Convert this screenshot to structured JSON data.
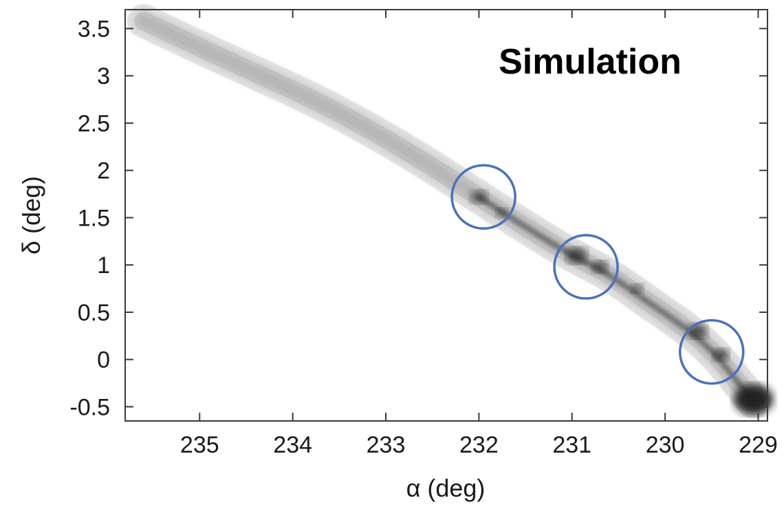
{
  "chart_data": {
    "type": "scatter",
    "title": "",
    "annotation": "Simulation",
    "xlabel": "α (deg)",
    "ylabel": "δ (deg)",
    "xlim": [
      235.8,
      228.9
    ],
    "ylim": [
      -0.65,
      3.7
    ],
    "x_ticks": [
      235,
      234,
      233,
      232,
      231,
      230,
      229
    ],
    "y_ticks": [
      3.5,
      3,
      2.5,
      2,
      1.5,
      1,
      0.5,
      0,
      -0.5
    ],
    "y_tick_labels": [
      "3.5",
      "3",
      "2.5",
      "2",
      "1.5",
      "1",
      "0.5",
      "0",
      "-0.5"
    ],
    "grid": false,
    "stream_track": [
      [
        235.6,
        3.58
      ],
      [
        235.0,
        3.3
      ],
      [
        234.4,
        3.03
      ],
      [
        233.8,
        2.76
      ],
      [
        233.2,
        2.45
      ],
      [
        232.6,
        2.1
      ],
      [
        232.0,
        1.72
      ],
      [
        231.5,
        1.4
      ],
      [
        231.0,
        1.1
      ],
      [
        230.6,
        0.9
      ],
      [
        230.2,
        0.62
      ],
      [
        229.8,
        0.35
      ],
      [
        229.5,
        0.1
      ],
      [
        229.25,
        -0.2
      ],
      [
        229.05,
        -0.45
      ]
    ],
    "circles": [
      {
        "alpha": 231.95,
        "delta": 1.72
      },
      {
        "alpha": 230.85,
        "delta": 0.98
      },
      {
        "alpha": 229.5,
        "delta": 0.08
      }
    ],
    "colors": {
      "circle": "#4a72b8",
      "density": "#1e1e1e",
      "axes": "#3a3a3a"
    }
  }
}
